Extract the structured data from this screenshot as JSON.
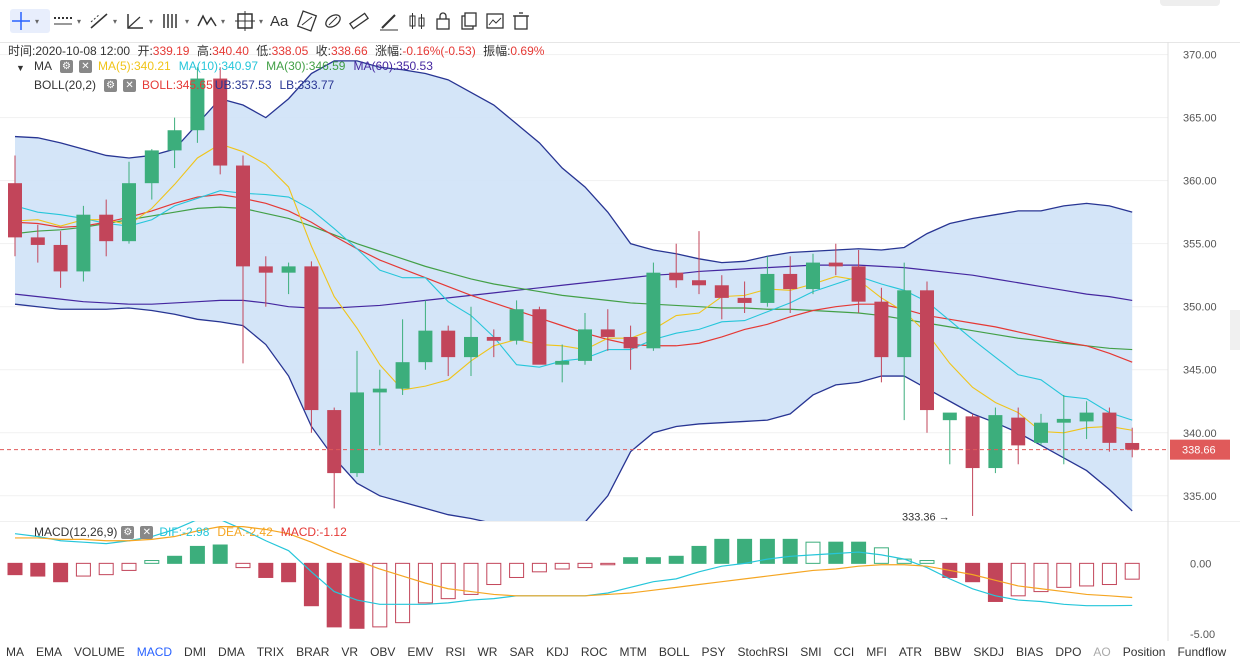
{
  "toolbar": {
    "tools": [
      {
        "name": "crosshair-icon",
        "dd": true
      },
      {
        "name": "line-style-icon",
        "dd": true
      },
      {
        "name": "trend-line-icon",
        "dd": true
      },
      {
        "name": "angle-icon",
        "dd": true
      },
      {
        "name": "fib-icon",
        "dd": true
      },
      {
        "name": "wave-icon",
        "dd": true
      },
      {
        "name": "measure-frame-icon",
        "dd": true
      }
    ],
    "text_tool": "Aa",
    "icons": [
      "brush-icon",
      "eraser-icon",
      "ruler-icon",
      "pencil-icon",
      "candle-settings-icon",
      "lock-icon",
      "copy-icon",
      "screenshot-icon",
      "trash-icon"
    ]
  },
  "info": {
    "time_label": "时间:",
    "time": "2020-10-08 12:00",
    "open_label": "开:",
    "open": "339.19",
    "high_label": "高:",
    "high": "340.40",
    "low_label": "低:",
    "low": "338.05",
    "close_label": "收:",
    "close": "338.66",
    "change_label": "涨幅:",
    "change": "-0.16%(-0.53)",
    "amp_label": "振幅:",
    "amp": "0.69%"
  },
  "ma_legend": {
    "name": "MA",
    "items": [
      {
        "label": "MA(5):340.21",
        "color": "#f0c419"
      },
      {
        "label": "MA(10):340.97",
        "color": "#26c6da"
      },
      {
        "label": "MA(30):346.59",
        "color": "#43a047"
      },
      {
        "label": "MA(60):350.53",
        "color": "#4527a0"
      }
    ]
  },
  "boll_legend": {
    "name": "BOLL(20,2)",
    "items": [
      {
        "label": "BOLL:345.65",
        "color": "#e53935"
      },
      {
        "label": "UB:357.53",
        "color": "#283593"
      },
      {
        "label": "LB:333.77",
        "color": "#283593"
      }
    ]
  },
  "macd_legend": {
    "name": "MACD(12,26,9)",
    "items": [
      {
        "label": "DIF:-2.98",
        "color": "#26c6da"
      },
      {
        "label": "DEA:-2.42",
        "color": "#f5a623"
      },
      {
        "label": "MACD:-1.12",
        "color": "#e53935"
      }
    ]
  },
  "colors": {
    "up": "#3cae7c",
    "down": "#c2455a",
    "boll_fill": "#cfe2f7",
    "boll_line": "#283593",
    "ma5": "#f0c419",
    "ma10": "#26c6da",
    "ma30": "#43a047",
    "ma60": "#4527a0",
    "boll_mid": "#e53935",
    "price_tag": "#e05a5a"
  },
  "annotation": {
    "low_mark": "333.36 →"
  },
  "chart_data": {
    "type": "candlestick",
    "ylim": [
      333.0,
      371.0
    ],
    "y_ticks": [
      "370.00",
      "365.00",
      "360.00",
      "355.00",
      "350.00",
      "345.00",
      "340.00",
      "335.00"
    ],
    "y_tick_values": [
      370,
      365,
      360,
      355,
      350,
      345,
      340,
      335
    ],
    "current_price": "338.66",
    "current_price_value": 338.66,
    "candles": [
      {
        "o": 359.8,
        "h": 362.0,
        "l": 354.0,
        "c": 355.5
      },
      {
        "o": 355.5,
        "h": 356.5,
        "l": 353.5,
        "c": 354.9
      },
      {
        "o": 354.9,
        "h": 356.0,
        "l": 351.5,
        "c": 352.8
      },
      {
        "o": 352.8,
        "h": 358.0,
        "l": 352.0,
        "c": 357.3
      },
      {
        "o": 357.3,
        "h": 358.5,
        "l": 354.0,
        "c": 355.2
      },
      {
        "o": 355.2,
        "h": 361.5,
        "l": 355.0,
        "c": 359.8
      },
      {
        "o": 359.8,
        "h": 362.5,
        "l": 358.5,
        "c": 362.4
      },
      {
        "o": 362.4,
        "h": 365.0,
        "l": 361.0,
        "c": 364.0
      },
      {
        "o": 364.0,
        "h": 369.0,
        "l": 363.0,
        "c": 368.1
      },
      {
        "o": 368.1,
        "h": 369.0,
        "l": 360.5,
        "c": 361.2
      },
      {
        "o": 361.2,
        "h": 362.0,
        "l": 345.5,
        "c": 353.2
      },
      {
        "o": 353.2,
        "h": 354.0,
        "l": 350.0,
        "c": 352.7
      },
      {
        "o": 352.7,
        "h": 353.5,
        "l": 351.0,
        "c": 353.2
      },
      {
        "o": 353.2,
        "h": 353.6,
        "l": 340.0,
        "c": 341.8
      },
      {
        "o": 341.8,
        "h": 342.0,
        "l": 334.0,
        "c": 336.8
      },
      {
        "o": 336.8,
        "h": 346.5,
        "l": 336.5,
        "c": 343.2
      },
      {
        "o": 343.2,
        "h": 345.0,
        "l": 339.0,
        "c": 343.5
      },
      {
        "o": 343.5,
        "h": 349.0,
        "l": 343.0,
        "c": 345.6
      },
      {
        "o": 345.6,
        "h": 350.5,
        "l": 345.0,
        "c": 348.1
      },
      {
        "o": 348.1,
        "h": 348.5,
        "l": 344.5,
        "c": 346.0
      },
      {
        "o": 346.0,
        "h": 350.0,
        "l": 344.5,
        "c": 347.6
      },
      {
        "o": 347.6,
        "h": 348.2,
        "l": 346.0,
        "c": 347.3
      },
      {
        "o": 347.3,
        "h": 350.5,
        "l": 347.0,
        "c": 349.8
      },
      {
        "o": 349.8,
        "h": 350.0,
        "l": 345.5,
        "c": 345.4
      },
      {
        "o": 345.4,
        "h": 347.0,
        "l": 344.0,
        "c": 345.7
      },
      {
        "o": 345.7,
        "h": 349.5,
        "l": 345.4,
        "c": 348.2
      },
      {
        "o": 348.2,
        "h": 349.8,
        "l": 346.5,
        "c": 347.6
      },
      {
        "o": 347.6,
        "h": 348.5,
        "l": 345.0,
        "c": 346.7
      },
      {
        "o": 346.7,
        "h": 353.5,
        "l": 346.5,
        "c": 352.7
      },
      {
        "o": 352.7,
        "h": 355.0,
        "l": 351.5,
        "c": 352.1
      },
      {
        "o": 352.1,
        "h": 356.0,
        "l": 351.0,
        "c": 351.7
      },
      {
        "o": 351.7,
        "h": 352.5,
        "l": 349.0,
        "c": 350.7
      },
      {
        "o": 350.7,
        "h": 352.0,
        "l": 349.5,
        "c": 350.3
      },
      {
        "o": 350.3,
        "h": 354.0,
        "l": 350.0,
        "c": 352.6
      },
      {
        "o": 352.6,
        "h": 354.0,
        "l": 349.5,
        "c": 351.4
      },
      {
        "o": 351.4,
        "h": 354.2,
        "l": 351.0,
        "c": 353.5
      },
      {
        "o": 353.5,
        "h": 355.0,
        "l": 352.5,
        "c": 353.2
      },
      {
        "o": 353.2,
        "h": 354.5,
        "l": 349.5,
        "c": 350.4
      },
      {
        "o": 350.4,
        "h": 351.5,
        "l": 344.0,
        "c": 346.0
      },
      {
        "o": 346.0,
        "h": 353.5,
        "l": 341.0,
        "c": 351.3
      },
      {
        "o": 351.3,
        "h": 352.0,
        "l": 340.0,
        "c": 341.8
      },
      {
        "o": 341.0,
        "h": 341.5,
        "l": 337.5,
        "c": 341.6
      },
      {
        "o": 341.3,
        "h": 341.5,
        "l": 333.4,
        "c": 337.2
      },
      {
        "o": 337.2,
        "h": 342.0,
        "l": 336.8,
        "c": 341.4
      },
      {
        "o": 341.2,
        "h": 342.0,
        "l": 337.5,
        "c": 339.0
      },
      {
        "o": 339.2,
        "h": 341.5,
        "l": 339.0,
        "c": 340.8
      },
      {
        "o": 340.8,
        "h": 343.0,
        "l": 337.5,
        "c": 341.1
      },
      {
        "o": 340.9,
        "h": 342.5,
        "l": 339.5,
        "c": 341.6
      },
      {
        "o": 341.6,
        "h": 342.0,
        "l": 338.5,
        "c": 339.2
      },
      {
        "o": 339.19,
        "h": 340.4,
        "l": 338.05,
        "c": 338.66
      }
    ],
    "boll_upper": [
      363.5,
      363.4,
      363.0,
      362.5,
      362.0,
      361.8,
      362.0,
      362.5,
      364.5,
      366.5,
      366.0,
      365.0,
      366.5,
      368.5,
      369.5,
      369.5,
      369.0,
      368.8,
      368.5,
      368.0,
      367.0,
      366.0,
      364.5,
      363.0,
      361.0,
      359.5,
      357.5,
      355.0,
      354.5,
      354.2,
      353.8,
      353.5,
      353.6,
      354.0,
      354.3,
      354.4,
      354.5,
      354.6,
      354.5,
      354.7,
      355.8,
      356.6,
      357.0,
      357.3,
      357.6,
      357.6,
      358.0,
      358.2,
      358.0,
      357.5
    ],
    "boll_lower": [
      350.2,
      350.0,
      349.8,
      349.8,
      349.8,
      349.9,
      349.7,
      349.4,
      349.0,
      348.8,
      348.5,
      347.0,
      344.5,
      340.5,
      338.0,
      336.0,
      335.0,
      334.5,
      334.0,
      333.5,
      333.2,
      332.8,
      332.5,
      332.5,
      332.5,
      332.9,
      335.0,
      338.5,
      340.0,
      340.5,
      340.7,
      340.8,
      340.9,
      341.0,
      341.5,
      343.0,
      343.8,
      344.0,
      344.5,
      344.5,
      343.5,
      342.5,
      341.5,
      340.8,
      340.0,
      339.0,
      338.0,
      337.0,
      335.5,
      333.8
    ],
    "boll_mid": [
      356.7,
      356.6,
      356.3,
      356.4,
      356.7,
      357.1,
      357.6,
      358.2,
      358.7,
      358.9,
      358.6,
      358.2,
      357.6,
      356.7,
      355.6,
      354.6,
      353.7,
      353.0,
      352.3,
      351.6,
      350.9,
      350.3,
      349.7,
      349.1,
      348.5,
      347.9,
      347.4,
      347.0,
      346.9,
      346.9,
      347.1,
      347.6,
      348.2,
      348.6,
      349.2,
      349.7,
      350.0,
      350.2,
      350.2,
      349.8,
      349.3,
      349.0,
      348.7,
      348.4,
      348.0,
      347.6,
      347.2,
      346.9,
      346.3,
      345.6
    ],
    "ma5": [
      356.8,
      356.9,
      356.4,
      356.9,
      356.9,
      356.5,
      357.8,
      359.7,
      361.8,
      362.9,
      362.3,
      361.3,
      359.5,
      354.8,
      350.8,
      348.3,
      345.4,
      343.4,
      343.7,
      344.2,
      345.7,
      346.9,
      347.4,
      347.0,
      346.9,
      346.6,
      347.5,
      347.5,
      348.2,
      349.3,
      349.5,
      350.8,
      350.9,
      351.4,
      351.3,
      351.8,
      352.4,
      352.1,
      350.7,
      349.6,
      347.9,
      345.5,
      343.6,
      342.4,
      341.6,
      340.1,
      340.0,
      340.4,
      340.5,
      340.2
    ],
    "ma10": [
      358.0,
      357.5,
      357.3,
      357.0,
      356.6,
      356.4,
      356.9,
      358.0,
      358.6,
      359.2,
      359.0,
      358.9,
      358.7,
      357.7,
      356.2,
      354.6,
      352.9,
      352.3,
      352.3,
      350.4,
      349.3,
      347.6,
      345.4,
      345.2,
      345.7,
      345.9,
      346.6,
      346.6,
      347.4,
      347.9,
      348.2,
      348.8,
      348.9,
      349.6,
      350.3,
      351.2,
      351.8,
      352.4,
      351.8,
      351.3,
      350.4,
      348.9,
      347.4,
      346.0,
      344.6,
      344.2,
      342.9,
      342.7,
      341.6,
      341.0
    ],
    "ma30": [
      355.8,
      356.0,
      356.1,
      356.3,
      356.6,
      356.9,
      357.2,
      357.5,
      357.8,
      357.9,
      357.8,
      357.4,
      357.0,
      356.4,
      355.7,
      355.0,
      354.4,
      353.8,
      353.2,
      352.7,
      352.2,
      351.8,
      351.5,
      351.2,
      350.9,
      350.7,
      350.5,
      350.3,
      350.2,
      350.1,
      350.0,
      349.9,
      349.9,
      349.8,
      349.8,
      349.7,
      349.6,
      349.5,
      349.3,
      349.0,
      348.7,
      348.4,
      348.1,
      347.8,
      347.5,
      347.3,
      347.1,
      346.9,
      346.7,
      346.6
    ],
    "ma60": [
      351.0,
      350.8,
      350.6,
      350.4,
      350.3,
      350.2,
      350.2,
      350.3,
      350.4,
      350.5,
      350.5,
      350.3,
      350.0,
      349.9,
      349.9,
      350.0,
      350.1,
      350.3,
      350.5,
      350.7,
      350.9,
      351.1,
      351.3,
      351.5,
      351.7,
      351.9,
      352.1,
      352.3,
      352.5,
      352.6,
      352.8,
      352.9,
      353.0,
      353.1,
      353.2,
      353.3,
      353.3,
      353.3,
      353.2,
      353.1,
      352.9,
      352.7,
      352.5,
      352.2,
      351.9,
      351.6,
      351.3,
      351.0,
      350.8,
      350.5
    ],
    "macd": {
      "ylim": [
        -5.5,
        3.0
      ],
      "y_ticks": [
        "0.00",
        "-5.00"
      ],
      "y_tick_values": [
        0,
        -5
      ],
      "hist": [
        -0.8,
        -0.9,
        -1.3,
        -0.9,
        -0.8,
        -0.5,
        0.2,
        0.5,
        1.2,
        1.3,
        -0.3,
        -1.0,
        -1.3,
        -3.0,
        -4.5,
        -4.6,
        -4.5,
        -4.2,
        -2.8,
        -2.5,
        -2.2,
        -1.5,
        -1.0,
        -0.6,
        -0.4,
        -0.3,
        -0.1,
        0.4,
        0.4,
        0.5,
        1.2,
        1.7,
        1.7,
        1.7,
        1.7,
        1.5,
        1.5,
        1.5,
        1.1,
        0.3,
        0.2,
        -1.0,
        -1.3,
        -2.7,
        -2.3,
        -2.0,
        -1.7,
        -1.6,
        -1.5,
        -1.12
      ],
      "dif": [
        2.1,
        1.9,
        1.6,
        1.5,
        1.4,
        1.6,
        1.9,
        2.4,
        3.1,
        3.1,
        2.4,
        1.6,
        0.9,
        -0.6,
        -2.0,
        -2.6,
        -2.9,
        -2.9,
        -2.9,
        -2.8,
        -2.6,
        -2.5,
        -2.3,
        -2.3,
        -2.3,
        -2.3,
        -2.1,
        -1.7,
        -1.3,
        -1.1,
        -0.6,
        -0.2,
        0.0,
        0.3,
        0.5,
        0.6,
        0.7,
        0.8,
        0.6,
        0.3,
        -0.3,
        -1.1,
        -1.8,
        -2.3,
        -2.6,
        -2.7,
        -2.9,
        -3.0,
        -3.0,
        -2.98
      ],
      "dea": [
        1.8,
        1.8,
        1.7,
        1.7,
        1.6,
        1.6,
        1.7,
        1.9,
        2.3,
        2.6,
        2.6,
        2.4,
        2.1,
        1.5,
        0.8,
        0.2,
        -0.4,
        -0.9,
        -1.4,
        -1.8,
        -2.0,
        -2.2,
        -2.3,
        -2.3,
        -2.3,
        -2.3,
        -2.2,
        -2.1,
        -1.9,
        -1.7,
        -1.5,
        -1.3,
        -1.1,
        -0.9,
        -0.7,
        -0.5,
        -0.4,
        -0.2,
        -0.1,
        -0.1,
        -0.2,
        -0.5,
        -0.8,
        -1.2,
        -1.6,
        -1.8,
        -2.0,
        -2.2,
        -2.3,
        -2.42
      ]
    }
  },
  "tabs": [
    {
      "label": "MA"
    },
    {
      "label": "EMA"
    },
    {
      "label": "VOLUME"
    },
    {
      "label": "MACD",
      "selected": true
    },
    {
      "label": "DMI"
    },
    {
      "label": "DMA"
    },
    {
      "label": "TRIX"
    },
    {
      "label": "BRAR"
    },
    {
      "label": "VR"
    },
    {
      "label": "OBV"
    },
    {
      "label": "EMV"
    },
    {
      "label": "RSI"
    },
    {
      "label": "WR"
    },
    {
      "label": "SAR"
    },
    {
      "label": "KDJ"
    },
    {
      "label": "ROC"
    },
    {
      "label": "MTM"
    },
    {
      "label": "BOLL"
    },
    {
      "label": "PSY"
    },
    {
      "label": "StochRSI"
    },
    {
      "label": "SMI"
    },
    {
      "label": "CCI"
    },
    {
      "label": "MFI"
    },
    {
      "label": "ATR"
    },
    {
      "label": "BBW"
    },
    {
      "label": "SKDJ"
    },
    {
      "label": "BIAS"
    },
    {
      "label": "DPO"
    },
    {
      "label": "AO",
      "dim": true
    },
    {
      "label": "Position"
    },
    {
      "label": "Fundflow"
    }
  ]
}
